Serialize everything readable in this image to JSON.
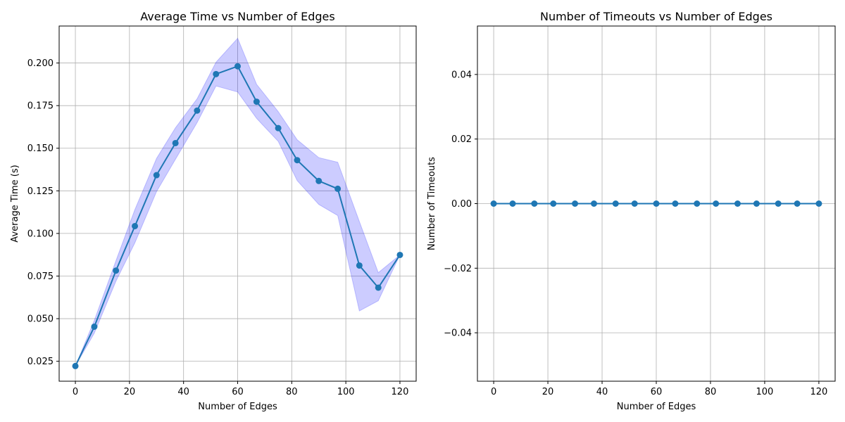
{
  "chart_data": [
    {
      "type": "line",
      "title": "Average Time vs Number of Edges",
      "xlabel": "Number of Edges",
      "ylabel": "Average Time (s)",
      "xlim": [
        -6,
        126
      ],
      "ylim": [
        0.0133,
        0.2217
      ],
      "xticks": [
        0,
        20,
        40,
        60,
        80,
        100,
        120
      ],
      "yticks": [
        0.025,
        0.05,
        0.075,
        0.1,
        0.125,
        0.15,
        0.175,
        0.2
      ],
      "ytick_labels": [
        "0.025",
        "0.050",
        "0.075",
        "0.100",
        "0.125",
        "0.150",
        "0.175",
        "0.200"
      ],
      "grid": true,
      "colors": {
        "line": "#1f77b4",
        "band": "#0000ff"
      },
      "x": [
        0,
        7,
        15,
        22,
        30,
        37,
        45,
        52,
        60,
        67,
        75,
        82,
        90,
        97,
        105,
        112,
        120
      ],
      "series": [
        {
          "values": [
            0.0222,
            0.0453,
            0.0782,
            0.1043,
            0.1342,
            0.153,
            0.1721,
            0.1935,
            0.1981,
            0.1773,
            0.1618,
            0.143,
            0.1308,
            0.1262,
            0.0812,
            0.0682,
            0.0874
          ],
          "band_upper": [
            0.0222,
            0.049,
            0.084,
            0.114,
            0.144,
            0.162,
            0.179,
            0.2005,
            0.2145,
            0.1875,
            0.1715,
            0.155,
            0.1445,
            0.1418,
            0.107,
            0.077,
            0.0874
          ],
          "band_lower": [
            0.0222,
            0.0415,
            0.072,
            0.0945,
            0.1245,
            0.1435,
            0.165,
            0.1865,
            0.183,
            0.1675,
            0.154,
            0.131,
            0.117,
            0.1105,
            0.0545,
            0.0605,
            0.0874
          ]
        }
      ]
    },
    {
      "type": "line",
      "title": "Number of Timeouts vs Number of Edges",
      "xlabel": "Number of Edges",
      "ylabel": "Number of Timeouts",
      "xlim": [
        -6,
        126
      ],
      "ylim": [
        -0.055,
        0.055
      ],
      "xticks": [
        0,
        20,
        40,
        60,
        80,
        100,
        120
      ],
      "yticks": [
        -0.04,
        -0.02,
        0.0,
        0.02,
        0.04
      ],
      "ytick_labels": [
        "−0.04",
        "−0.02",
        "0.00",
        "0.02",
        "0.04"
      ],
      "grid": true,
      "colors": {
        "line": "#1f77b4"
      },
      "x": [
        0,
        7,
        15,
        22,
        30,
        37,
        45,
        52,
        60,
        67,
        75,
        82,
        90,
        97,
        105,
        112,
        120
      ],
      "series": [
        {
          "values": [
            0,
            0,
            0,
            0,
            0,
            0,
            0,
            0,
            0,
            0,
            0,
            0,
            0,
            0,
            0,
            0,
            0
          ]
        }
      ]
    }
  ]
}
